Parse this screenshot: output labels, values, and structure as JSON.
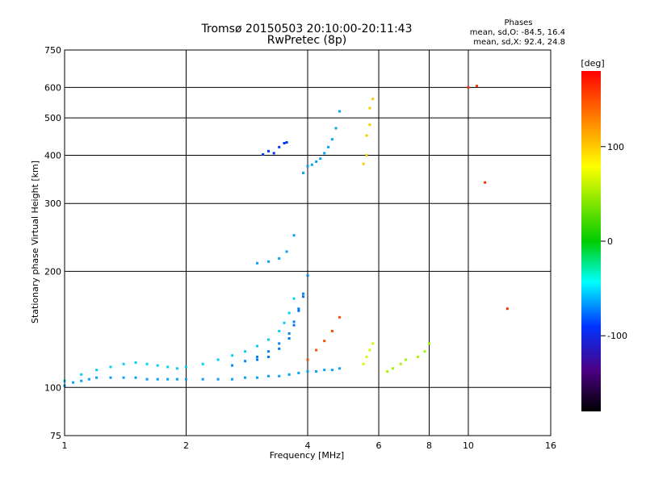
{
  "chart_data": {
    "type": "scatter",
    "title": "Tromsø 20150503 20:10:00-20:11:43",
    "subtitle": "RwPretec (8p)",
    "xlabel": "Frequency [MHz]",
    "ylabel": "Stationary phase Virtual Height [km]",
    "x_scale": "log",
    "y_scale": "log",
    "xlim": [
      1,
      16
    ],
    "ylim": [
      75,
      750
    ],
    "x_ticks": [
      1,
      2,
      4,
      6,
      8,
      10,
      16
    ],
    "y_ticks": [
      75,
      100,
      200,
      300,
      400,
      500,
      600,
      750
    ],
    "grid": true,
    "phase_info": {
      "heading": "Phases",
      "line_o": "mean, sd,O: -84.5, 16.4",
      "line_x": "mean, sd,X: 92.4, 24.8"
    },
    "colorbar": {
      "unit": "[deg]",
      "range": [
        -180,
        180
      ],
      "ticks": [
        100,
        0,
        -100
      ]
    },
    "series": [
      {
        "x": [
          1.0,
          1.05,
          1.1,
          1.15,
          1.2,
          1.3,
          1.4,
          1.5,
          1.6,
          1.7,
          1.8,
          1.9,
          2.0,
          2.2,
          2.4,
          2.6,
          2.8,
          3.0,
          3.2,
          3.4,
          3.6,
          3.8,
          4.0,
          4.2,
          4.4,
          4.6,
          4.8
        ],
        "y": [
          101,
          103,
          104,
          105,
          106,
          106,
          106,
          106,
          105,
          105,
          105,
          105,
          105,
          105,
          105,
          105,
          106,
          106,
          107,
          107,
          108,
          109,
          110,
          110,
          111,
          111,
          112
        ],
        "phase": -100
      },
      {
        "x": [
          1.0,
          1.1,
          1.2,
          1.3,
          1.4,
          1.5,
          1.6,
          1.7,
          1.8,
          1.9,
          2.0,
          2.2,
          2.4,
          2.6,
          2.8,
          3.0,
          3.2,
          3.4,
          3.5,
          3.6,
          3.7
        ],
        "y": [
          104,
          108,
          111,
          113,
          115,
          116,
          115,
          114,
          113,
          112,
          113,
          115,
          118,
          121,
          124,
          128,
          133,
          140,
          147,
          156,
          170
        ],
        "phase": -85
      },
      {
        "x": [
          2.6,
          2.8,
          3.0,
          3.2,
          3.4,
          3.6,
          3.7,
          3.8,
          3.9,
          4.0
        ],
        "y": [
          114,
          117,
          120,
          124,
          130,
          138,
          148,
          160,
          175,
          195
        ],
        "phase": -110
      },
      {
        "x": [
          3.0,
          3.2,
          3.4,
          3.6,
          3.7,
          3.8,
          3.9
        ],
        "y": [
          118,
          120,
          126,
          134,
          145,
          158,
          172
        ],
        "phase": -115
      },
      {
        "x": [
          3.0,
          3.2,
          3.4,
          3.55,
          3.7
        ],
        "y": [
          210,
          212,
          216,
          225,
          248
        ],
        "phase": -100
      },
      {
        "x": [
          3.1,
          3.2,
          3.3,
          3.4,
          3.5,
          3.55
        ],
        "y": [
          402,
          410,
          405,
          420,
          430,
          432
        ],
        "phase": -135
      },
      {
        "x": [
          3.9,
          4.0,
          4.1,
          4.2,
          4.3,
          4.4,
          4.5,
          4.6,
          4.7,
          4.8
        ],
        "y": [
          360,
          375,
          378,
          385,
          392,
          405,
          420,
          440,
          470,
          520
        ],
        "phase": -100
      },
      {
        "x": [
          4.0,
          4.2,
          4.4,
          4.6,
          4.8
        ],
        "y": [
          118,
          125,
          132,
          140,
          152
        ],
        "phase": 140
      },
      {
        "x": [
          5.5,
          5.6,
          5.6,
          5.7,
          5.7,
          5.8
        ],
        "y": [
          380,
          400,
          450,
          480,
          530,
          560
        ],
        "phase": 100
      },
      {
        "x": [
          5.5,
          5.6,
          5.7,
          5.8
        ],
        "y": [
          115,
          120,
          125,
          130
        ],
        "phase": 80
      },
      {
        "x": [
          6.3,
          6.5,
          6.8,
          7.0,
          7.5,
          7.8,
          8.0
        ],
        "y": [
          110,
          112,
          115,
          118,
          120,
          124,
          130
        ],
        "phase": 60
      },
      {
        "x": [
          10.0,
          10.5,
          11.0,
          12.5
        ],
        "y": [
          600,
          605,
          340,
          160
        ],
        "phase": 150
      }
    ]
  }
}
